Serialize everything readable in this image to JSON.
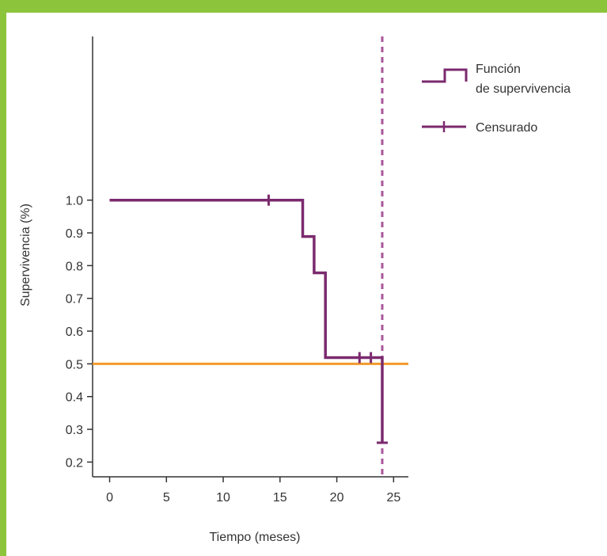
{
  "chart_data": {
    "type": "line",
    "subtype": "kaplan-meier step",
    "xlabel": "Tiempo (meses)",
    "ylabel": "Supervivencia (%)",
    "xlim": [
      -1.5,
      26.3
    ],
    "ylim": [
      0.155,
      1.5
    ],
    "x_ticks": [
      0,
      5,
      10,
      15,
      20,
      25
    ],
    "y_ticks": [
      0.2,
      0.3,
      0.4,
      0.5,
      0.6,
      0.7,
      0.8,
      0.9,
      1.0
    ],
    "x_tick_labels": [
      "0",
      "5",
      "10",
      "15",
      "20",
      "25"
    ],
    "y_tick_labels": [
      "0.2",
      "0.3",
      "0.4",
      "0.5",
      "0.6",
      "0.7",
      "0.8",
      "0.9",
      "1.0"
    ],
    "grid": false,
    "legend_position": "top-right",
    "series": [
      {
        "name": "Función de supervivencia",
        "color": "#7b2a6e",
        "step_points": [
          {
            "x": 0,
            "y": 1.0
          },
          {
            "x": 17,
            "y": 1.0
          },
          {
            "x": 17,
            "y": 0.889
          },
          {
            "x": 18,
            "y": 0.889
          },
          {
            "x": 18,
            "y": 0.778
          },
          {
            "x": 19,
            "y": 0.778
          },
          {
            "x": 19,
            "y": 0.519
          },
          {
            "x": 24,
            "y": 0.519
          },
          {
            "x": 24,
            "y": 0.259
          }
        ]
      },
      {
        "name": "Censurado",
        "color": "#7b2a6e",
        "censor_points": [
          {
            "x": 14,
            "y": 1.0
          },
          {
            "x": 22,
            "y": 0.519
          },
          {
            "x": 23,
            "y": 0.519
          },
          {
            "x": 24,
            "y": 0.259
          }
        ]
      }
    ],
    "reference_lines": [
      {
        "orientation": "horizontal",
        "value": 0.5,
        "color": "#f39a2b",
        "style": "solid"
      },
      {
        "orientation": "vertical",
        "value": 24,
        "color": "#a8579a",
        "style": "dashed"
      }
    ],
    "legend": [
      {
        "label_lines": [
          "Función",
          "de supervivencia"
        ],
        "symbol": "step"
      },
      {
        "label_lines": [
          "Censurado"
        ],
        "symbol": "censor"
      }
    ]
  }
}
